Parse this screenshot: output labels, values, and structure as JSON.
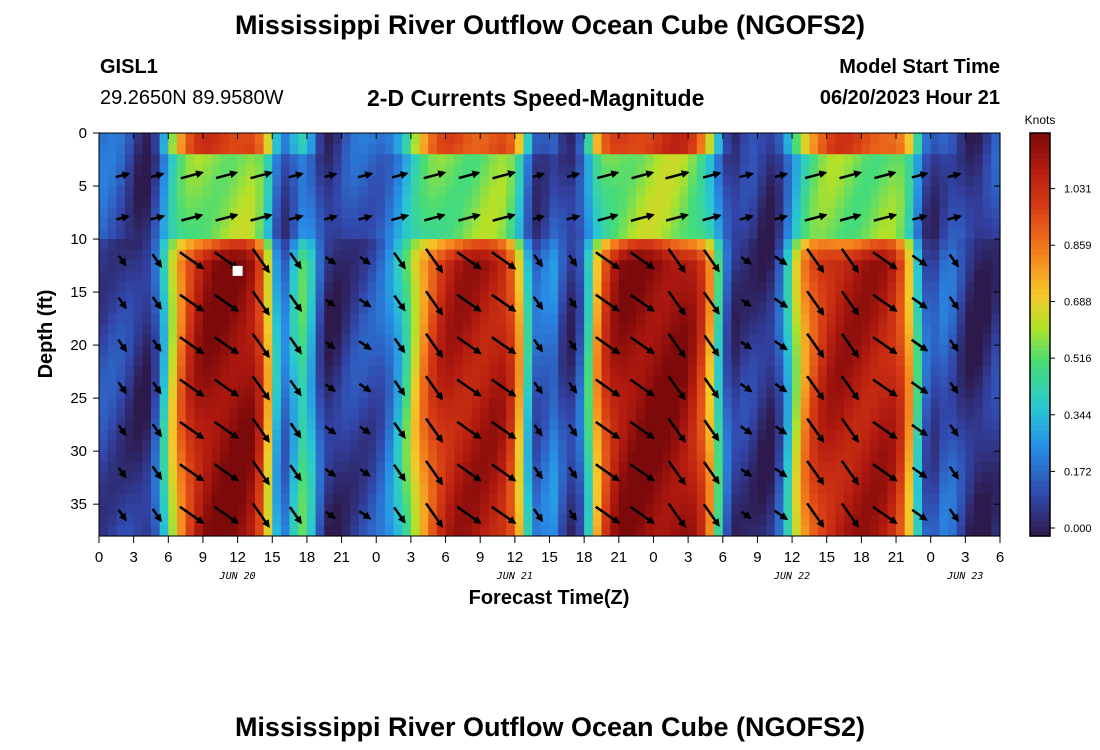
{
  "page": {
    "title": "Mississippi River Outflow Ocean Cube (NGOFS2)",
    "station_id": "GISL1",
    "station_coords": "29.2650N  89.9580W",
    "subtitle": "2-D Currents Speed-Magnitude",
    "model_label": "Model Start Time",
    "model_time": "06/20/2023 Hour 21",
    "footer_title": "Mississippi River Outflow Ocean Cube (NGOFS2)"
  },
  "chart_data": {
    "type": "heatmap",
    "title": "2-D Currents Speed-Magnitude",
    "xlabel": "Forecast Time(Z)",
    "ylabel": "Depth (ft)",
    "x_hours_range": [
      0,
      78
    ],
    "x_tick_hours": [
      0,
      3,
      6,
      9,
      12,
      15,
      18,
      21,
      24,
      27,
      30,
      33,
      36,
      39,
      42,
      45,
      48,
      51,
      54,
      57,
      60,
      63,
      66,
      69,
      72,
      75,
      78
    ],
    "x_tick_labels": [
      "0",
      "3",
      "6",
      "9",
      "12",
      "15",
      "18",
      "21",
      "0",
      "3",
      "6",
      "9",
      "12",
      "15",
      "18",
      "21",
      "0",
      "3",
      "6",
      "9",
      "12",
      "15",
      "18",
      "21",
      "0",
      "3",
      "6"
    ],
    "date_labels": [
      {
        "text": "JUN 20",
        "hour": 12
      },
      {
        "text": "JUN 21",
        "hour": 36
      },
      {
        "text": "JUN 22",
        "hour": 60
      },
      {
        "text": "JUN 23",
        "hour": 75
      }
    ],
    "y_ticks": [
      0,
      5,
      10,
      15,
      20,
      25,
      30,
      35
    ],
    "ylim": [
      0,
      38
    ],
    "colorbar": {
      "label": "Knots",
      "ticks": [
        "0.000",
        "0.172",
        "0.344",
        "0.516",
        "0.688",
        "0.859",
        "1.031"
      ],
      "range": [
        0,
        1.2
      ]
    },
    "speed_peaks_knots": [
      {
        "hour": 12,
        "speed": 1.2
      },
      {
        "hour": 33,
        "speed": 1.12
      },
      {
        "hour": 48,
        "speed": 1.2
      },
      {
        "hour": 66,
        "speed": 1.12
      }
    ],
    "slack_minima_hours": [
      4,
      16,
      20,
      38,
      41,
      55,
      58,
      72,
      76
    ],
    "station_marker": {
      "hour": 12,
      "depth": 13
    }
  }
}
